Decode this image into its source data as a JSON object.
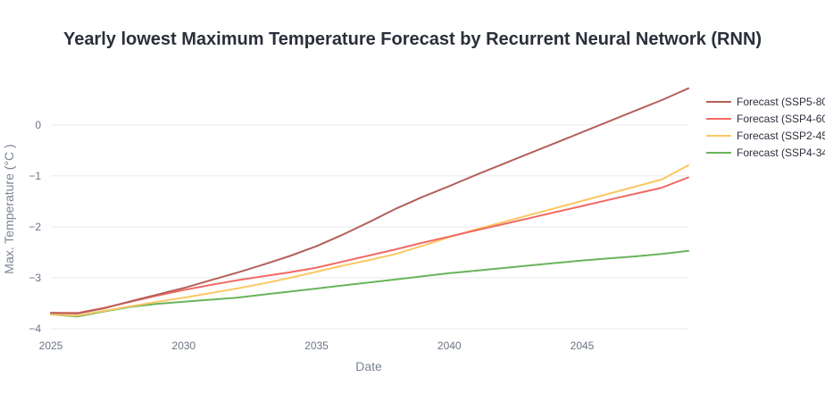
{
  "chart_data": {
    "type": "line",
    "title": "Yearly lowest Maximum Temperature Forecast by Recurrent Neural Network (RNN)",
    "xlabel": "Date",
    "ylabel": "Max. Temperature (°C )",
    "xlim": [
      2025,
      2049
    ],
    "ylim": [
      -4,
      0.7
    ],
    "x_ticks": [
      2025,
      2030,
      2035,
      2040,
      2045
    ],
    "x_tick_labels": [
      "2025",
      "2030",
      "2035",
      "2040",
      "2045"
    ],
    "y_ticks": [
      -4,
      -3,
      -2,
      -1,
      0
    ],
    "y_tick_labels": [
      "−4",
      "−3",
      "−2",
      "−1",
      "0"
    ],
    "grid": true,
    "legend_position": "top-right",
    "x": [
      2025,
      2026,
      2027,
      2028,
      2029,
      2030,
      2031,
      2032,
      2033,
      2034,
      2035,
      2036,
      2037,
      2038,
      2039,
      2040,
      2041,
      2042,
      2043,
      2044,
      2045,
      2046,
      2047,
      2048,
      2049
    ],
    "series": [
      {
        "name": "Forecast (SSP5-80",
        "color": "#b5605a",
        "values": [
          -3.69,
          -3.7,
          -3.6,
          -3.46,
          -3.33,
          -3.2,
          -3.05,
          -2.9,
          -2.74,
          -2.57,
          -2.38,
          -2.15,
          -1.9,
          -1.64,
          -1.41,
          -1.2,
          -0.98,
          -0.77,
          -0.56,
          -0.35,
          -0.14,
          0.07,
          0.28,
          0.49,
          0.72
        ]
      },
      {
        "name": "Forecast (SSP4-60",
        "color": "#f06a64",
        "values": [
          -3.69,
          -3.69,
          -3.59,
          -3.47,
          -3.35,
          -3.24,
          -3.14,
          -3.05,
          -2.97,
          -2.89,
          -2.8,
          -2.68,
          -2.56,
          -2.44,
          -2.31,
          -2.19,
          -2.07,
          -1.95,
          -1.83,
          -1.71,
          -1.59,
          -1.47,
          -1.35,
          -1.23,
          -1.03
        ]
      },
      {
        "name": "Forecast (SSP2-45",
        "color": "#fac763",
        "values": [
          -3.72,
          -3.74,
          -3.65,
          -3.56,
          -3.47,
          -3.39,
          -3.3,
          -3.21,
          -3.11,
          -3.0,
          -2.88,
          -2.76,
          -2.65,
          -2.53,
          -2.37,
          -2.2,
          -2.05,
          -1.91,
          -1.77,
          -1.63,
          -1.49,
          -1.35,
          -1.21,
          -1.07,
          -0.79
        ]
      },
      {
        "name": "Forecast (SSP4-34",
        "color": "#6ab45a",
        "values": [
          -3.72,
          -3.76,
          -3.66,
          -3.57,
          -3.51,
          -3.47,
          -3.43,
          -3.39,
          -3.33,
          -3.27,
          -3.21,
          -3.15,
          -3.09,
          -3.03,
          -2.97,
          -2.91,
          -2.86,
          -2.81,
          -2.76,
          -2.71,
          -2.66,
          -2.62,
          -2.58,
          -2.53,
          -2.47
        ]
      }
    ]
  }
}
